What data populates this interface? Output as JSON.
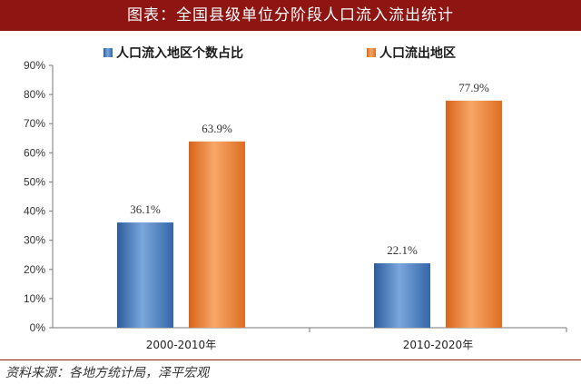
{
  "header": {
    "title": "图表：全国县级单位分阶段人口流入流出统计"
  },
  "footer": {
    "source": "资料来源：各地方统计局，泽平宏观"
  },
  "colors": {
    "inflow": "#4a7fc1",
    "outflow": "#ef8a3a",
    "header_bg": "#8e1512"
  },
  "chart_data": {
    "type": "bar",
    "categories": [
      "2000-2010年",
      "2010-2020年"
    ],
    "series": [
      {
        "name": "人口流入地区个数占比",
        "values": [
          36.1,
          22.1
        ],
        "labels": [
          "36.1%",
          "22.1%"
        ]
      },
      {
        "name": "人口流出地区",
        "values": [
          63.9,
          77.9
        ],
        "labels": [
          "63.9%",
          "77.9%"
        ]
      }
    ],
    "ylim": [
      0,
      90
    ],
    "yticks": [
      "0%",
      "10%",
      "20%",
      "30%",
      "40%",
      "50%",
      "60%",
      "70%",
      "80%",
      "90%"
    ],
    "legend_position": "top",
    "grid": false
  }
}
